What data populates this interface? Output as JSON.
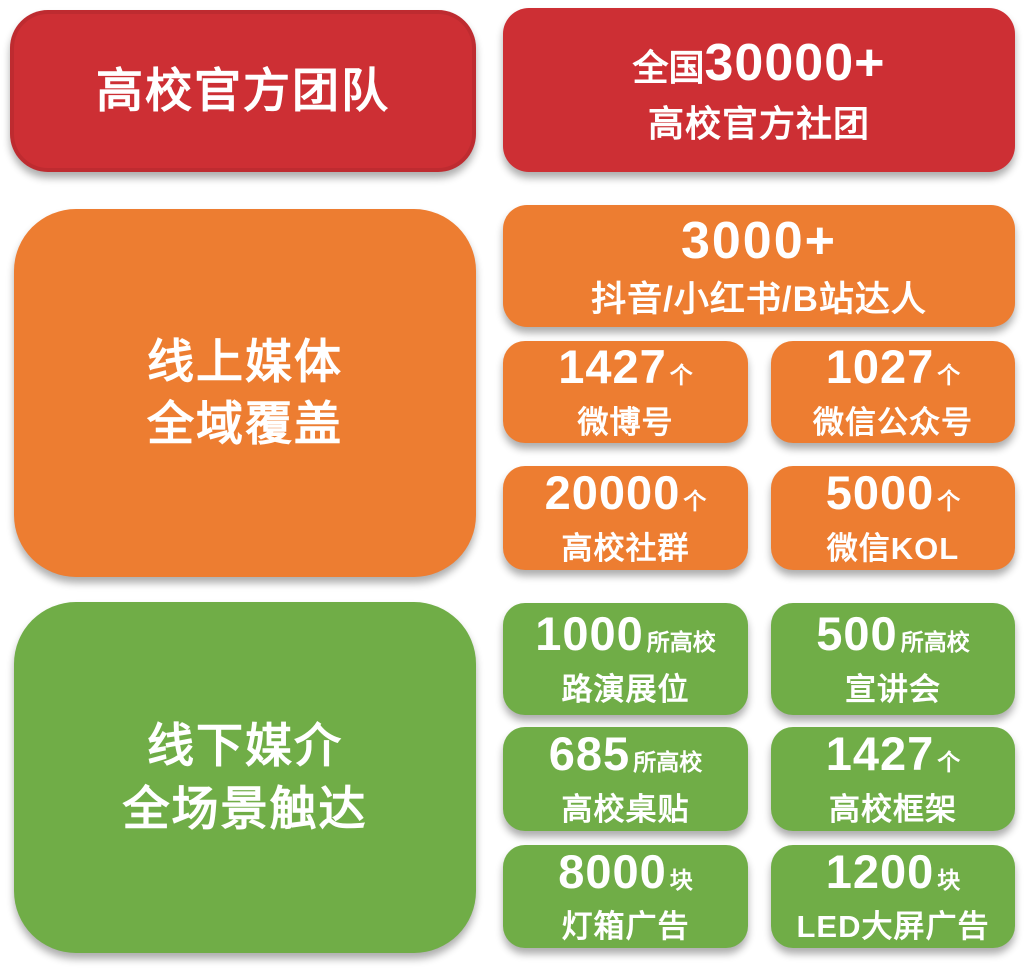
{
  "colors": {
    "red": "#cd2f34",
    "orange": "#ed7d31",
    "green": "#70ad47",
    "text": "#ffffff"
  },
  "red_section": {
    "headline": "高校官方团队",
    "stat": {
      "prefix": "全国",
      "number": "30000+",
      "label": "高校官方社团"
    }
  },
  "orange_section": {
    "headline_line1": "线上媒体",
    "headline_line2": "全域覆盖",
    "wide_stat": {
      "number": "3000+",
      "label": "抖音/小红书/B站达人"
    },
    "stats": [
      {
        "number": "1427",
        "unit": "个",
        "label": "微博号"
      },
      {
        "number": "1027",
        "unit": "个",
        "label": "微信公众号"
      },
      {
        "number": "20000",
        "unit": "个",
        "label": "高校社群"
      },
      {
        "number": "5000",
        "unit": "个",
        "label": "微信KOL"
      }
    ]
  },
  "green_section": {
    "headline_line1": "线下媒介",
    "headline_line2": "全场景触达",
    "stats": [
      {
        "number": "1000",
        "unit": "所高校",
        "label": "路演展位"
      },
      {
        "number": "500",
        "unit": "所高校",
        "label": "宣讲会"
      },
      {
        "number": "685",
        "unit": "所高校",
        "label": "高校桌贴"
      },
      {
        "number": "1427",
        "unit": "个",
        "label": "高校框架"
      },
      {
        "number": "8000",
        "unit": "块",
        "label": "灯箱广告"
      },
      {
        "number": "1200",
        "unit": "块",
        "label": "LED大屏广告"
      }
    ]
  }
}
